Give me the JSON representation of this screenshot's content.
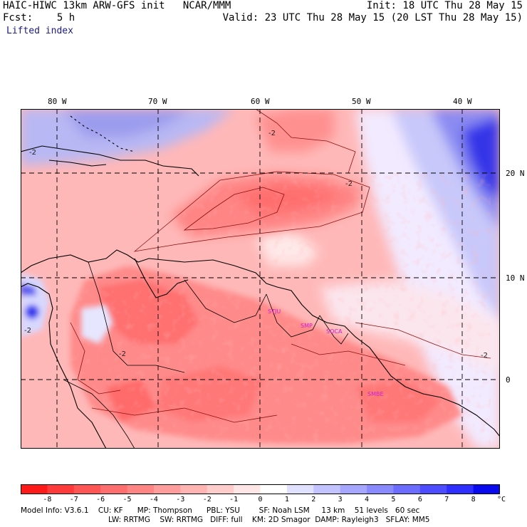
{
  "header": {
    "title": "HAIC-HIWC 13km ARW-GFS init   NCAR/MMM",
    "fcst": "Fcst:    5 h",
    "field": "Lifted index",
    "init": "Init: 18 UTC Thu 28 May 15",
    "valid": "Valid: 23 UTC Thu 28 May 15 (20 LST Thu 28 May 15)"
  },
  "axes": {
    "lon_labels": [
      "80 W",
      "70 W",
      "60 W",
      "50 W",
      "40 W"
    ],
    "lat_labels": [
      "20 N",
      "10 N",
      "0"
    ]
  },
  "stations": [
    "STJU",
    "SMP",
    "SOCA",
    "SMBE"
  ],
  "contour_labels": [
    "-2",
    "-2",
    "-2",
    "-2",
    "-2",
    "-2"
  ],
  "colorbar": {
    "labels": [
      "-8",
      "-7",
      "-6",
      "-5",
      "-4",
      "-3",
      "-2",
      "-1",
      "0",
      "1",
      "2",
      "3",
      "4",
      "5",
      "6",
      "7",
      "8"
    ],
    "unit": "°C",
    "colors": [
      "#ff1a1a",
      "#ff3a3a",
      "#ff5555",
      "#ff6e6e",
      "#ff8585",
      "#ff9c9c",
      "#ffb4b4",
      "#ffcccc",
      "#ffe6e6",
      "#ffffff",
      "#e0e0ff",
      "#c3c3ff",
      "#a6a6ff",
      "#8a8aff",
      "#6c6cff",
      "#4d4dff",
      "#2e2eff",
      "#0a0aee"
    ]
  },
  "footer": {
    "line1": "Model Info: V3.6.1    CU: KF      MP: Thompson      PBL: YSU        SF: Noah LSM     13 km    51 levels   60 sec",
    "line2": "LW: RRTMG    SW: RRTMG   DIFF: full    KM: 2D Smagor  DAMP: Rayleigh3   SFLAY: MM5"
  }
}
